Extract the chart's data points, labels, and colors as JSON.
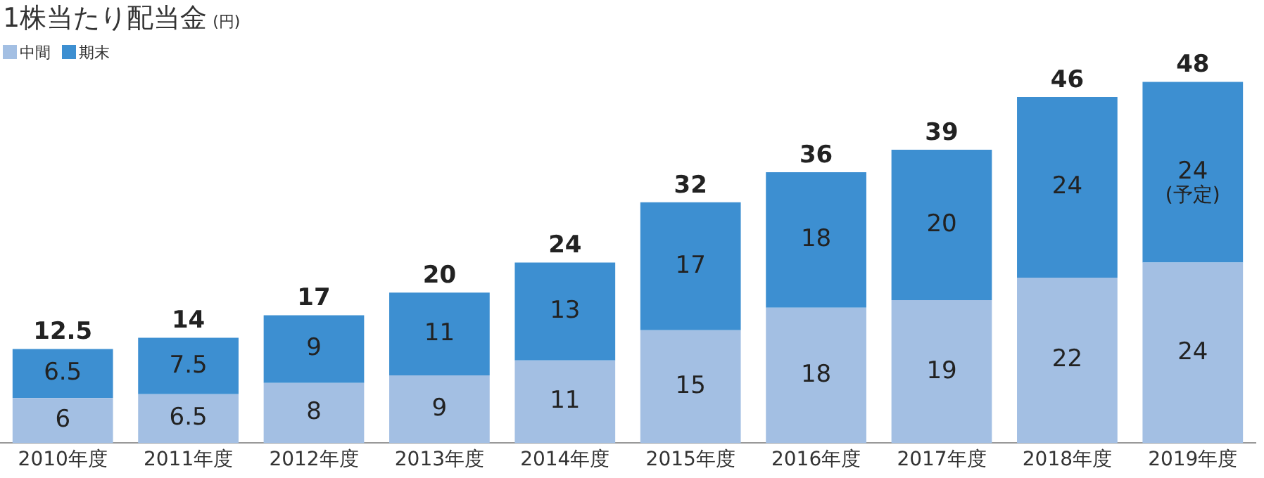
{
  "chart_data": {
    "type": "bar",
    "title": "1株当たり配当金",
    "subtitle": "(円)",
    "stacked": true,
    "data_labels": true,
    "legend": "top left",
    "grid": false,
    "categories": [
      "2010年度",
      "2011年度",
      "2012年度",
      "2013年度",
      "2014年度",
      "2015年度",
      "2016年度",
      "2017年度",
      "2018年度",
      "2019年度"
    ],
    "series": [
      {
        "name": "中間",
        "color": "#a3bfe3",
        "values": [
          6,
          6.5,
          8,
          9,
          11,
          15,
          18,
          19,
          22,
          24
        ]
      },
      {
        "name": "期末",
        "color": "#3d8fd1",
        "values": [
          6.5,
          7.5,
          9,
          11,
          13,
          17,
          18,
          20,
          24,
          24
        ]
      }
    ],
    "totals": [
      "12.5",
      "14",
      "17",
      "20",
      "24",
      "32",
      "36",
      "39",
      "46",
      "48"
    ],
    "annotations": [
      "(予定)"
    ]
  }
}
